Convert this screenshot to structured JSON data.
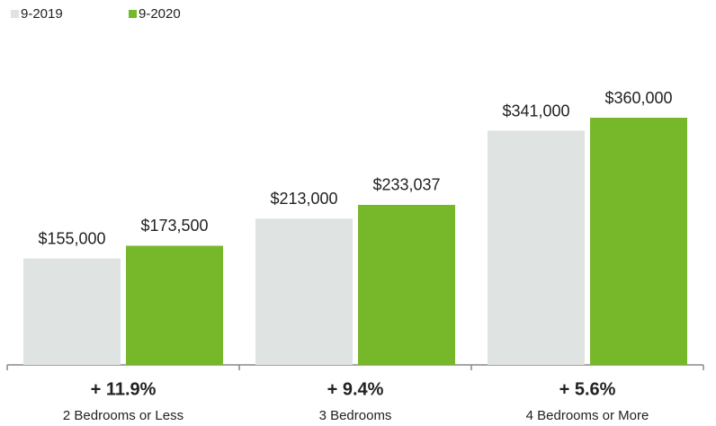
{
  "chart_data": {
    "type": "bar",
    "categories": [
      "2 Bedrooms or Less",
      "3 Bedrooms",
      "4 Bedrooms or More"
    ],
    "annotations": [
      "+ 11.9%",
      "+ 9.4%",
      "+ 5.6%"
    ],
    "series": [
      {
        "name": "9-2019",
        "color": "#dfe3e2",
        "values": [
          155000,
          213000,
          341000
        ],
        "value_labels": [
          "$155,000",
          "$213,000",
          "$341,000"
        ]
      },
      {
        "name": "9-2020",
        "color": "#76b82a",
        "values": [
          173500,
          233037,
          360000
        ],
        "value_labels": [
          "$173,500",
          "$233,037",
          "$360,000"
        ]
      }
    ],
    "legend": "top-left"
  }
}
